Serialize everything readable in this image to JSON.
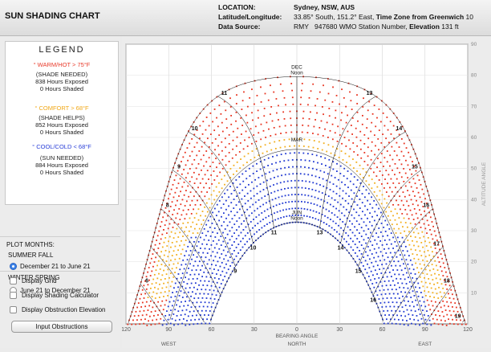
{
  "header": {
    "app_title": "SUN SHADING CHART",
    "location_label": "LOCATION:",
    "location_value": "Sydney, NSW, AUS",
    "latlon_label": "Latitude/Longitude:",
    "latlon_value": "33.85° South, 151.2° East,",
    "timezone_label": "Time Zone from Greenwich",
    "timezone_value": "10",
    "source_label": "Data Source:",
    "source_value": "RMY",
    "station_value": "947680 WMO Station Number,",
    "elevation_label": "Elevation",
    "elevation_value": "131 ft"
  },
  "legend": {
    "title": "LEGEND",
    "warm": {
      "label": "° WARM/HOT  > 75°F",
      "sub": "(SHADE NEEDED)",
      "exposed": "838 Hours Exposed",
      "shaded": "0 Hours Shaded"
    },
    "comfort": {
      "label": "° COMFORT  > 68°F",
      "sub": "(SHADE HELPS)",
      "exposed": "852 Hours Exposed",
      "shaded": "0 Hours Shaded"
    },
    "cool": {
      "label": "° COOL/COLD  < 68°F",
      "sub": "(SUN NEEDED)",
      "exposed": "884 Hours Exposed",
      "shaded": "0 Hours Shaded"
    }
  },
  "plot_months": {
    "title": "PLOT MONTHS:",
    "summer_fall": "SUMMER FALL",
    "option1": "December 21 to June 21",
    "winter_spring": "WINTER SPRING",
    "option2": "June 21 to December 21",
    "selected": 1
  },
  "options": {
    "display_grid": "Display Grid",
    "shading_calc": "Display Shading Calculator",
    "obstruction": "Display Obstruction Elevation",
    "input_button": "Input Obstructions"
  },
  "chart_data": {
    "type": "scatter",
    "projection": "sun path, bearing vs altitude",
    "xlabel": "BEARING ANGLE",
    "ylabel": "ALTITUDE ANGLE",
    "x_ticks": [
      "120",
      "90",
      "60",
      "30",
      "0",
      "30",
      "60",
      "90",
      "120"
    ],
    "y_ticks": [
      "10",
      "20",
      "30",
      "40",
      "50",
      "60",
      "70",
      "80",
      "90"
    ],
    "direction_labels": [
      "WEST",
      "NORTH",
      "EAST"
    ],
    "date_labels": [
      "DEC",
      "MAR",
      "JUN"
    ],
    "noon_label": "Noon",
    "hours": [
      6,
      7,
      8,
      9,
      10,
      11,
      12,
      13,
      14,
      15,
      16,
      17,
      18,
      19
    ],
    "hour_labels_outer": [
      "6",
      "8",
      "9",
      "10",
      "11",
      "13",
      "14",
      "15",
      "16",
      "17",
      "18",
      "19"
    ],
    "hour_labels_inner": [
      "9",
      "10",
      "11",
      "13",
      "14",
      "15",
      "16"
    ],
    "noon_altitudes": {
      "DEC": 80,
      "MAR": 56,
      "JUN": 33
    },
    "colors": {
      "warm": "#e8321e",
      "comfort": "#f2ae1c",
      "cool": "#1f38d2",
      "hour_line": "#000000"
    }
  }
}
